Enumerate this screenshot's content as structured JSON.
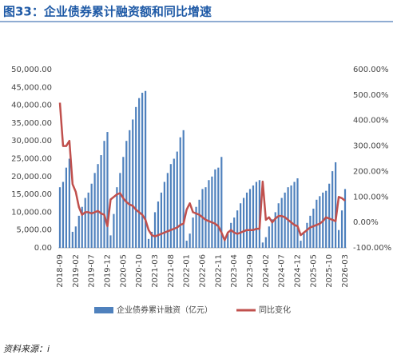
{
  "chart_data": {
    "type": "bar-line",
    "title": "图33：企业债券累计融资额和同比增速",
    "source": "资料来源：i",
    "categories": [
      "2018-09",
      null,
      null,
      null,
      null,
      "2019-02",
      null,
      null,
      null,
      null,
      "2019-07",
      null,
      null,
      null,
      null,
      "2019-12",
      null,
      null,
      null,
      null,
      "2020-05",
      null,
      null,
      null,
      null,
      "2020-10",
      null,
      null,
      null,
      null,
      "2021-03",
      null,
      null,
      null,
      null,
      "2021-08",
      null,
      null,
      null,
      null,
      "2022-01",
      null,
      null,
      null,
      null,
      "2022-06",
      null,
      null,
      null,
      null,
      "2022-11",
      null,
      null,
      null,
      null,
      "2023-04",
      null,
      null,
      null,
      null,
      "2023-09",
      null,
      null,
      null,
      null,
      "2024-02",
      null,
      null,
      null,
      null,
      "2024-07",
      null,
      null,
      null,
      null,
      "2024-12",
      null,
      null,
      null,
      null,
      "2025-05",
      null,
      null,
      null,
      null,
      "2025-10",
      null,
      null,
      null,
      null,
      "2026-03"
    ],
    "series": [
      {
        "name": "企业债券累计融资（亿元）",
        "type": "bar",
        "color": "#4f81bd",
        "values": [
          17000,
          18500,
          22500,
          25000,
          4500,
          6000,
          9000,
          11500,
          14000,
          15500,
          18000,
          21000,
          23500,
          26000,
          30000,
          32500,
          3500,
          9500,
          17000,
          21000,
          25500,
          30000,
          33000,
          36000,
          39500,
          42000,
          43500,
          44000,
          2500,
          4500,
          10000,
          13000,
          15500,
          18500,
          21000,
          23500,
          25000,
          27000,
          31000,
          33000,
          2000,
          4000,
          8500,
          11500,
          13500,
          16500,
          17000,
          19000,
          20000,
          22000,
          22500,
          25500,
          2000,
          4000,
          7000,
          8500,
          10500,
          12500,
          14000,
          15500,
          16500,
          17500,
          18500,
          19000,
          1500,
          3000,
          6000,
          8000,
          10000,
          12500,
          14000,
          15500,
          17000,
          17500,
          18500,
          19500,
          2000,
          4000,
          7000,
          9000,
          11000,
          13500,
          14500,
          15500,
          16000,
          18000,
          21500,
          24000,
          5000,
          10500,
          16500
        ]
      },
      {
        "name": "同比变化",
        "type": "line",
        "axis": "y2",
        "color": "#c0504d",
        "values": [
          470,
          300,
          300,
          320,
          150,
          120,
          60,
          30,
          40,
          40,
          35,
          40,
          45,
          35,
          30,
          -15,
          90,
          100,
          110,
          115,
          95,
          80,
          70,
          65,
          50,
          40,
          30,
          10,
          -30,
          -50,
          -55,
          -50,
          -45,
          -40,
          -35,
          -30,
          -25,
          -20,
          -10,
          -5,
          50,
          75,
          40,
          35,
          30,
          20,
          10,
          5,
          0,
          -5,
          -15,
          -40,
          -70,
          -40,
          -30,
          -40,
          -45,
          -40,
          -35,
          -30,
          -30,
          -30,
          -25,
          -25,
          160,
          10,
          20,
          0,
          15,
          25,
          25,
          20,
          10,
          0,
          -10,
          -15,
          -50,
          -40,
          -30,
          -20,
          -15,
          -10,
          -5,
          5,
          20,
          15,
          10,
          5,
          100,
          95,
          85
        ]
      }
    ],
    "ylim": [
      0,
      50000
    ],
    "yticks": [
      {
        "value": 0,
        "label": "0.00"
      },
      {
        "value": 5000,
        "label": "5,000.00"
      },
      {
        "value": 10000,
        "label": "10,000.00"
      },
      {
        "value": 15000,
        "label": "15,000.00"
      },
      {
        "value": 20000,
        "label": "20,000.00"
      },
      {
        "value": 25000,
        "label": "25,000.00"
      },
      {
        "value": 30000,
        "label": "30,000.00"
      },
      {
        "value": 35000,
        "label": "35,000.00"
      },
      {
        "value": 40000,
        "label": "40,000.00"
      },
      {
        "value": 45000,
        "label": "45,000.00"
      },
      {
        "value": 50000,
        "label": "50,000.00"
      }
    ],
    "y2lim": [
      -100,
      600
    ],
    "y2ticks": [
      {
        "value": -100,
        "label": "-100.00%"
      },
      {
        "value": 0,
        "label": "0.00%"
      },
      {
        "value": 100,
        "label": "100.00%"
      },
      {
        "value": 200,
        "label": "200.00%"
      },
      {
        "value": 300,
        "label": "300.00%"
      },
      {
        "value": 400,
        "label": "400.00%"
      },
      {
        "value": 500,
        "label": "500.00%"
      },
      {
        "value": 600,
        "label": "600.00%"
      }
    ],
    "grid": false
  }
}
